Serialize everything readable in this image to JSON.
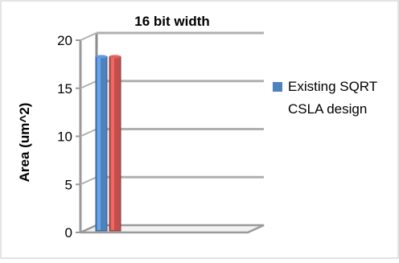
{
  "chart_data": {
    "type": "bar",
    "title": "16 bit width",
    "xlabel": "",
    "ylabel": "Area (um^2)",
    "ylim": [
      0,
      20
    ],
    "y_ticks": [
      "0",
      "5",
      "10",
      "15",
      "20"
    ],
    "categories": [
      ""
    ],
    "series": [
      {
        "name": "Existing SQRT CSLA design",
        "values": [
          18.3
        ],
        "color": "#4f81bd"
      },
      {
        "values": [
          18.3
        ],
        "color": "#c0504d"
      }
    ],
    "grid": true,
    "three_d": true,
    "legend_position": "right",
    "legend_lines": [
      "Existing SQRT",
      "CSLA design"
    ]
  }
}
